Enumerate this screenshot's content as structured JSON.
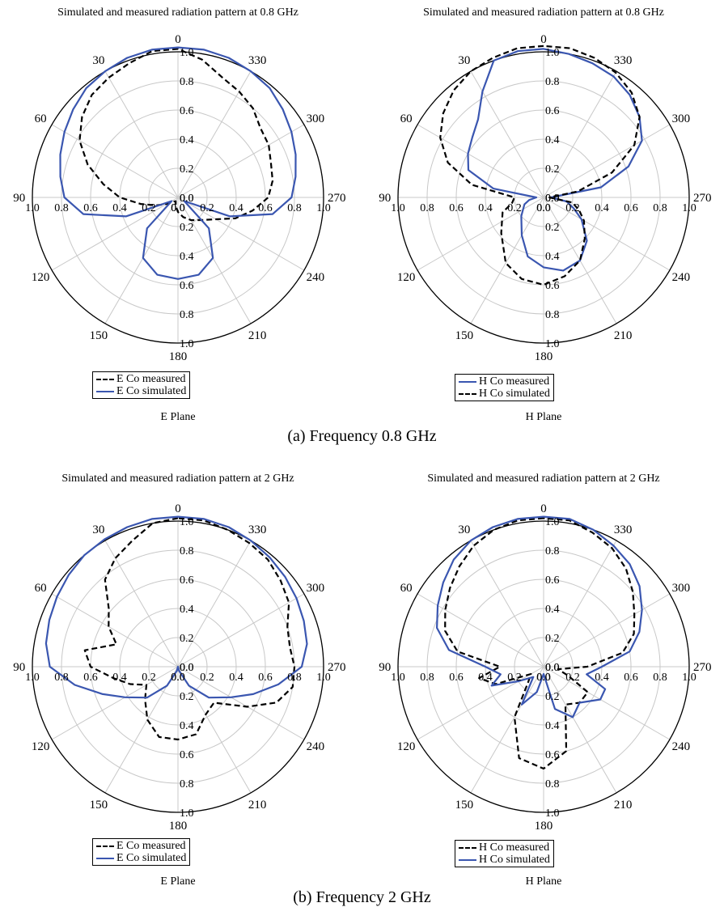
{
  "style": {
    "measured_color": "#000000",
    "simulated_color": "#3a56b0",
    "grid_color": "#c8c8c8"
  },
  "chart_data": [
    {
      "type": "polar-line",
      "title": "Simulated and measured radiation pattern at 0.8 GHz",
      "plane_label": "E Plane",
      "angle_direction": "counterclockwise",
      "zero_location": "top",
      "angle_ticks": [
        "0",
        "30",
        "60",
        "90",
        "120",
        "150",
        "180",
        "210",
        "240",
        "270",
        "300",
        "330"
      ],
      "radial_ticks": [
        "0.0",
        "0.2",
        "0.4",
        "0.6",
        "0.8",
        "1.0"
      ],
      "rlim": [
        0,
        1.0
      ],
      "legend_position": "bottom-left",
      "series": [
        {
          "name": "E Co measured",
          "style": "dashed",
          "color": "#000000",
          "theta": [
            0,
            10,
            20,
            30,
            40,
            50,
            60,
            70,
            80,
            90,
            100,
            110,
            120,
            135,
            150,
            165,
            180,
            195,
            210,
            225,
            240,
            250,
            260,
            270,
            280,
            290,
            300,
            310,
            320,
            330,
            340,
            350,
            360
          ],
          "r": [
            1.02,
            1.02,
            0.98,
            0.95,
            0.92,
            0.86,
            0.78,
            0.66,
            0.52,
            0.4,
            0.26,
            0.16,
            0.09,
            0.04,
            0.03,
            0.06,
            0.1,
            0.14,
            0.18,
            0.22,
            0.3,
            0.42,
            0.52,
            0.62,
            0.66,
            0.68,
            0.72,
            0.74,
            0.8,
            0.84,
            0.88,
            0.96,
            1.02
          ]
        },
        {
          "name": "E Co simulated",
          "style": "solid",
          "color": "#3a56b0",
          "theta": [
            0,
            10,
            20,
            30,
            40,
            50,
            60,
            70,
            80,
            90,
            100,
            110,
            120,
            135,
            150,
            165,
            180,
            195,
            210,
            225,
            240,
            250,
            260,
            270,
            280,
            290,
            300,
            310,
            320,
            330,
            340,
            350,
            360
          ],
          "r": [
            1.03,
            1.03,
            1.02,
            1.0,
            0.98,
            0.94,
            0.9,
            0.86,
            0.82,
            0.78,
            0.66,
            0.38,
            0.05,
            0.3,
            0.48,
            0.55,
            0.56,
            0.55,
            0.48,
            0.3,
            0.05,
            0.38,
            0.66,
            0.78,
            0.82,
            0.86,
            0.9,
            0.94,
            0.98,
            1.0,
            1.02,
            1.03,
            1.03
          ]
        }
      ]
    },
    {
      "type": "polar-line",
      "title": "Simulated and measured radiation pattern at 0.8 GHz",
      "plane_label": "H Plane",
      "angle_direction": "counterclockwise",
      "zero_location": "top",
      "angle_ticks": [
        "0",
        "30",
        "60",
        "90",
        "120",
        "150",
        "180",
        "210",
        "240",
        "270",
        "300",
        "330"
      ],
      "radial_ticks": [
        "0.0",
        "0.2",
        "0.4",
        "0.6",
        "0.8",
        "1.0"
      ],
      "rlim": [
        0,
        1.0
      ],
      "legend_position": "bottom-left",
      "series": [
        {
          "name": "H Co measured",
          "style": "solid",
          "color": "#3a56b0",
          "theta": [
            0,
            10,
            20,
            30,
            40,
            50,
            60,
            70,
            80,
            90,
            100,
            110,
            130,
            150,
            165,
            180,
            195,
            210,
            225,
            240,
            250,
            260,
            270,
            280,
            290,
            300,
            310,
            320,
            330,
            340,
            350,
            360
          ],
          "r": [
            1.02,
            1.02,
            1.0,
            0.84,
            0.7,
            0.64,
            0.6,
            0.55,
            0.35,
            0.05,
            0.1,
            0.14,
            0.2,
            0.3,
            0.42,
            0.48,
            0.52,
            0.5,
            0.42,
            0.3,
            0.22,
            0.16,
            0.05,
            0.4,
            0.62,
            0.78,
            0.86,
            0.92,
            0.96,
            0.98,
            1.0,
            1.02
          ]
        },
        {
          "name": "H Co simulated",
          "style": "dashed",
          "color": "#000000",
          "theta": [
            0,
            10,
            20,
            30,
            40,
            50,
            60,
            70,
            80,
            90,
            100,
            110,
            130,
            150,
            165,
            180,
            195,
            210,
            225,
            240,
            250,
            260,
            270,
            280,
            290,
            300,
            310,
            320,
            330,
            340,
            350,
            360
          ],
          "r": [
            1.04,
            1.04,
            1.02,
            1.0,
            0.96,
            0.9,
            0.82,
            0.7,
            0.5,
            0.2,
            0.22,
            0.3,
            0.38,
            0.52,
            0.58,
            0.6,
            0.56,
            0.5,
            0.4,
            0.32,
            0.26,
            0.2,
            0.04,
            0.24,
            0.5,
            0.72,
            0.86,
            0.94,
            0.99,
            1.02,
            1.04,
            1.04
          ]
        }
      ]
    },
    {
      "type": "polar-line",
      "title": "Simulated and measured radiation pattern at 2 GHz",
      "plane_label": "E Plane",
      "angle_direction": "counterclockwise",
      "zero_location": "top",
      "angle_ticks": [
        "0",
        "30",
        "60",
        "90",
        "120",
        "150",
        "180",
        "210",
        "240",
        "270",
        "300",
        "330"
      ],
      "radial_ticks": [
        "0.0",
        "0.2",
        "0.4",
        "0.6",
        "0.8",
        "1.0"
      ],
      "rlim": [
        0,
        1.0
      ],
      "legend_position": "bottom-left",
      "series": [
        {
          "name": "E Co measured",
          "style": "dashed",
          "color": "#000000",
          "theta": [
            0,
            10,
            20,
            30,
            40,
            50,
            60,
            70,
            80,
            90,
            100,
            110,
            120,
            135,
            150,
            165,
            180,
            195,
            210,
            225,
            240,
            250,
            260,
            270,
            280,
            290,
            300,
            310,
            320,
            330,
            340,
            350,
            360
          ],
          "r": [
            1.02,
            1.0,
            0.92,
            0.86,
            0.78,
            0.62,
            0.55,
            0.45,
            0.65,
            0.6,
            0.45,
            0.35,
            0.25,
            0.32,
            0.42,
            0.5,
            0.5,
            0.48,
            0.38,
            0.35,
            0.55,
            0.72,
            0.8,
            0.8,
            0.78,
            0.8,
            0.88,
            0.92,
            0.96,
            0.98,
            1.0,
            1.02,
            1.02
          ]
        },
        {
          "name": "E Co simulated",
          "style": "solid",
          "color": "#3a56b0",
          "theta": [
            0,
            10,
            20,
            30,
            40,
            50,
            60,
            70,
            80,
            90,
            100,
            110,
            120,
            135,
            150,
            165,
            180,
            195,
            210,
            225,
            240,
            250,
            260,
            270,
            280,
            290,
            300,
            310,
            320,
            330,
            340,
            350,
            360
          ],
          "r": [
            1.03,
            1.03,
            1.02,
            1.01,
            1.0,
            0.98,
            0.96,
            0.94,
            0.92,
            0.88,
            0.72,
            0.55,
            0.42,
            0.3,
            0.15,
            0.03,
            0.0,
            0.03,
            0.15,
            0.3,
            0.42,
            0.55,
            0.7,
            0.85,
            0.9,
            0.92,
            0.94,
            0.96,
            0.98,
            1.0,
            1.02,
            1.03,
            1.03
          ]
        }
      ]
    },
    {
      "type": "polar-line",
      "title": "Simulated and measured radiation pattern at 2 GHz",
      "plane_label": "H Plane",
      "angle_direction": "counterclockwise",
      "zero_location": "top",
      "angle_ticks": [
        "0",
        "30",
        "60",
        "90",
        "120",
        "150",
        "180",
        "210",
        "240",
        "270",
        "300",
        "330"
      ],
      "radial_ticks": [
        "0.0",
        "0.2",
        "0.4",
        "0.6",
        "0.8",
        "1.0"
      ],
      "rlim": [
        0,
        1.0
      ],
      "legend_position": "bottom-left",
      "series": [
        {
          "name": "H Co measured",
          "style": "dashed",
          "color": "#000000",
          "theta": [
            0,
            10,
            20,
            30,
            40,
            50,
            60,
            70,
            80,
            90,
            100,
            110,
            120,
            135,
            150,
            165,
            180,
            195,
            210,
            225,
            240,
            250,
            260,
            270,
            280,
            290,
            300,
            310,
            320,
            330,
            340,
            350,
            360
          ],
          "r": [
            1.02,
            1.02,
            1.0,
            0.96,
            0.9,
            0.84,
            0.78,
            0.72,
            0.6,
            0.3,
            0.45,
            0.35,
            0.1,
            0.15,
            0.4,
            0.65,
            0.7,
            0.6,
            0.3,
            0.35,
            0.35,
            0.18,
            0.1,
            0.3,
            0.55,
            0.66,
            0.72,
            0.8,
            0.88,
            0.94,
            0.98,
            1.02,
            1.02
          ]
        },
        {
          "name": "H Co simulated",
          "style": "solid",
          "color": "#3a56b0",
          "theta": [
            0,
            10,
            20,
            30,
            40,
            50,
            60,
            70,
            80,
            90,
            100,
            110,
            120,
            135,
            150,
            165,
            180,
            195,
            210,
            225,
            240,
            250,
            260,
            270,
            280,
            290,
            300,
            310,
            320,
            330,
            340,
            350,
            360
          ],
          "r": [
            1.03,
            1.03,
            1.02,
            1.0,
            0.96,
            0.9,
            0.84,
            0.78,
            0.66,
            0.4,
            0.3,
            0.38,
            0.2,
            0.1,
            0.3,
            0.18,
            0.05,
            0.3,
            0.4,
            0.35,
            0.45,
            0.45,
            0.3,
            0.4,
            0.6,
            0.7,
            0.78,
            0.86,
            0.92,
            0.96,
            1.0,
            1.03,
            1.03
          ]
        }
      ]
    }
  ],
  "captions": {
    "a": "(a)  Frequency 0.8 GHz",
    "b": "(b) Frequency 2 GHz"
  }
}
